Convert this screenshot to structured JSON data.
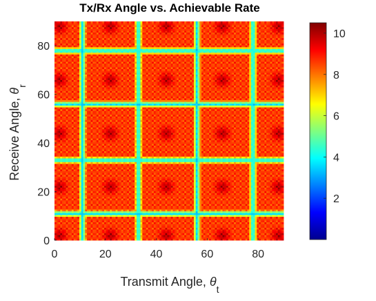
{
  "chart_data": {
    "type": "heatmap",
    "title": "Tx/Rx Angle vs. Achievable Rate",
    "xlabel": {
      "text": "Transmit Angle, ",
      "symbol": "θ",
      "sub": "t"
    },
    "ylabel": {
      "text": "Receive Angle, ",
      "symbol": "θ",
      "sub": "r"
    },
    "xlim": [
      0,
      90
    ],
    "ylim": [
      0,
      90
    ],
    "xticks": [
      "0",
      "20",
      "40",
      "60",
      "80"
    ],
    "yticks": [
      "0",
      "20",
      "40",
      "60",
      "80"
    ],
    "colorbar": {
      "min": 0,
      "max": 10.5,
      "ticks": [
        "2",
        "4",
        "6",
        "8",
        "10"
      ]
    },
    "colormap": "jet",
    "low_rate_angles": [
      11,
      33,
      56,
      78
    ],
    "dark_red_angles": [
      2,
      22,
      44,
      66,
      88
    ],
    "peak_value": 10.2,
    "background_value": 8.6
  }
}
